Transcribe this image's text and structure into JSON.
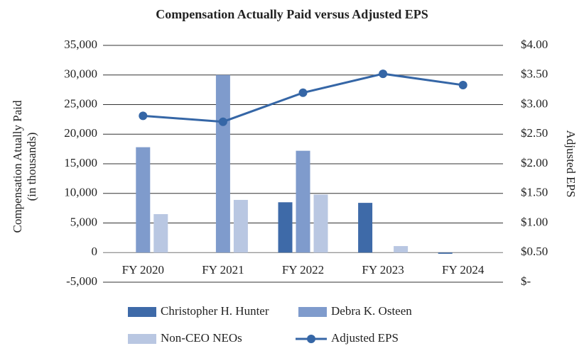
{
  "chart_data": {
    "type": "bar",
    "title": "Compensation Actually Paid versus Adjusted EPS",
    "y_label": [
      "Compensation Atually Paid",
      "(in thousands)"
    ],
    "y2_label": "Adjusted EPS",
    "categories": [
      "FY 2020",
      "FY 2021",
      "FY 2022",
      "FY 2023",
      "FY 2024"
    ],
    "series": [
      {
        "name": "Christopher H. Hunter",
        "type": "bar",
        "color": "#3e6aa8",
        "values": [
          null,
          null,
          8500,
          8400,
          -200
        ]
      },
      {
        "name": "Debra K. Osteen",
        "type": "bar",
        "color": "#7f9bcc",
        "values": [
          17800,
          30000,
          17200,
          null,
          null
        ]
      },
      {
        "name": "Non-CEO NEOs",
        "type": "bar",
        "color": "#b9c7e2",
        "values": [
          6500,
          8900,
          9800,
          1100,
          null
        ]
      },
      {
        "name": "Adjusted EPS",
        "type": "line",
        "axis": "y2",
        "color": "#3566a6",
        "values": [
          2.81,
          2.71,
          3.2,
          3.52,
          3.33
        ]
      }
    ],
    "ylim": [
      -5000,
      35000
    ],
    "yticks": [
      {
        "value": -5000,
        "label": "-5,000"
      },
      0,
      {
        "value": 5000,
        "label": "5,000"
      },
      {
        "value": 10000,
        "label": "10,000"
      },
      {
        "value": 15000,
        "label": "15,000"
      },
      {
        "value": 20000,
        "label": "20,000"
      },
      {
        "value": 25000,
        "label": "25,000"
      },
      {
        "value": 30000,
        "label": "30,000"
      },
      {
        "value": 35000,
        "label": "35,000"
      }
    ],
    "y2lim": [
      0,
      4
    ],
    "y2ticks": [
      {
        "value": 0,
        "label": "$-"
      },
      {
        "value": 0.5,
        "label": "$0.50"
      },
      {
        "value": 1,
        "label": "$1.00"
      },
      {
        "value": 1.5,
        "label": "$1.50"
      },
      {
        "value": 2,
        "label": "$2.00"
      },
      {
        "value": 2.5,
        "label": "$2.50"
      },
      {
        "value": 3,
        "label": "$3.00"
      },
      {
        "value": 3.5,
        "label": "$3.50"
      },
      {
        "value": 4,
        "label": "$4.00"
      }
    ],
    "grid": true,
    "legend": "bottom"
  }
}
